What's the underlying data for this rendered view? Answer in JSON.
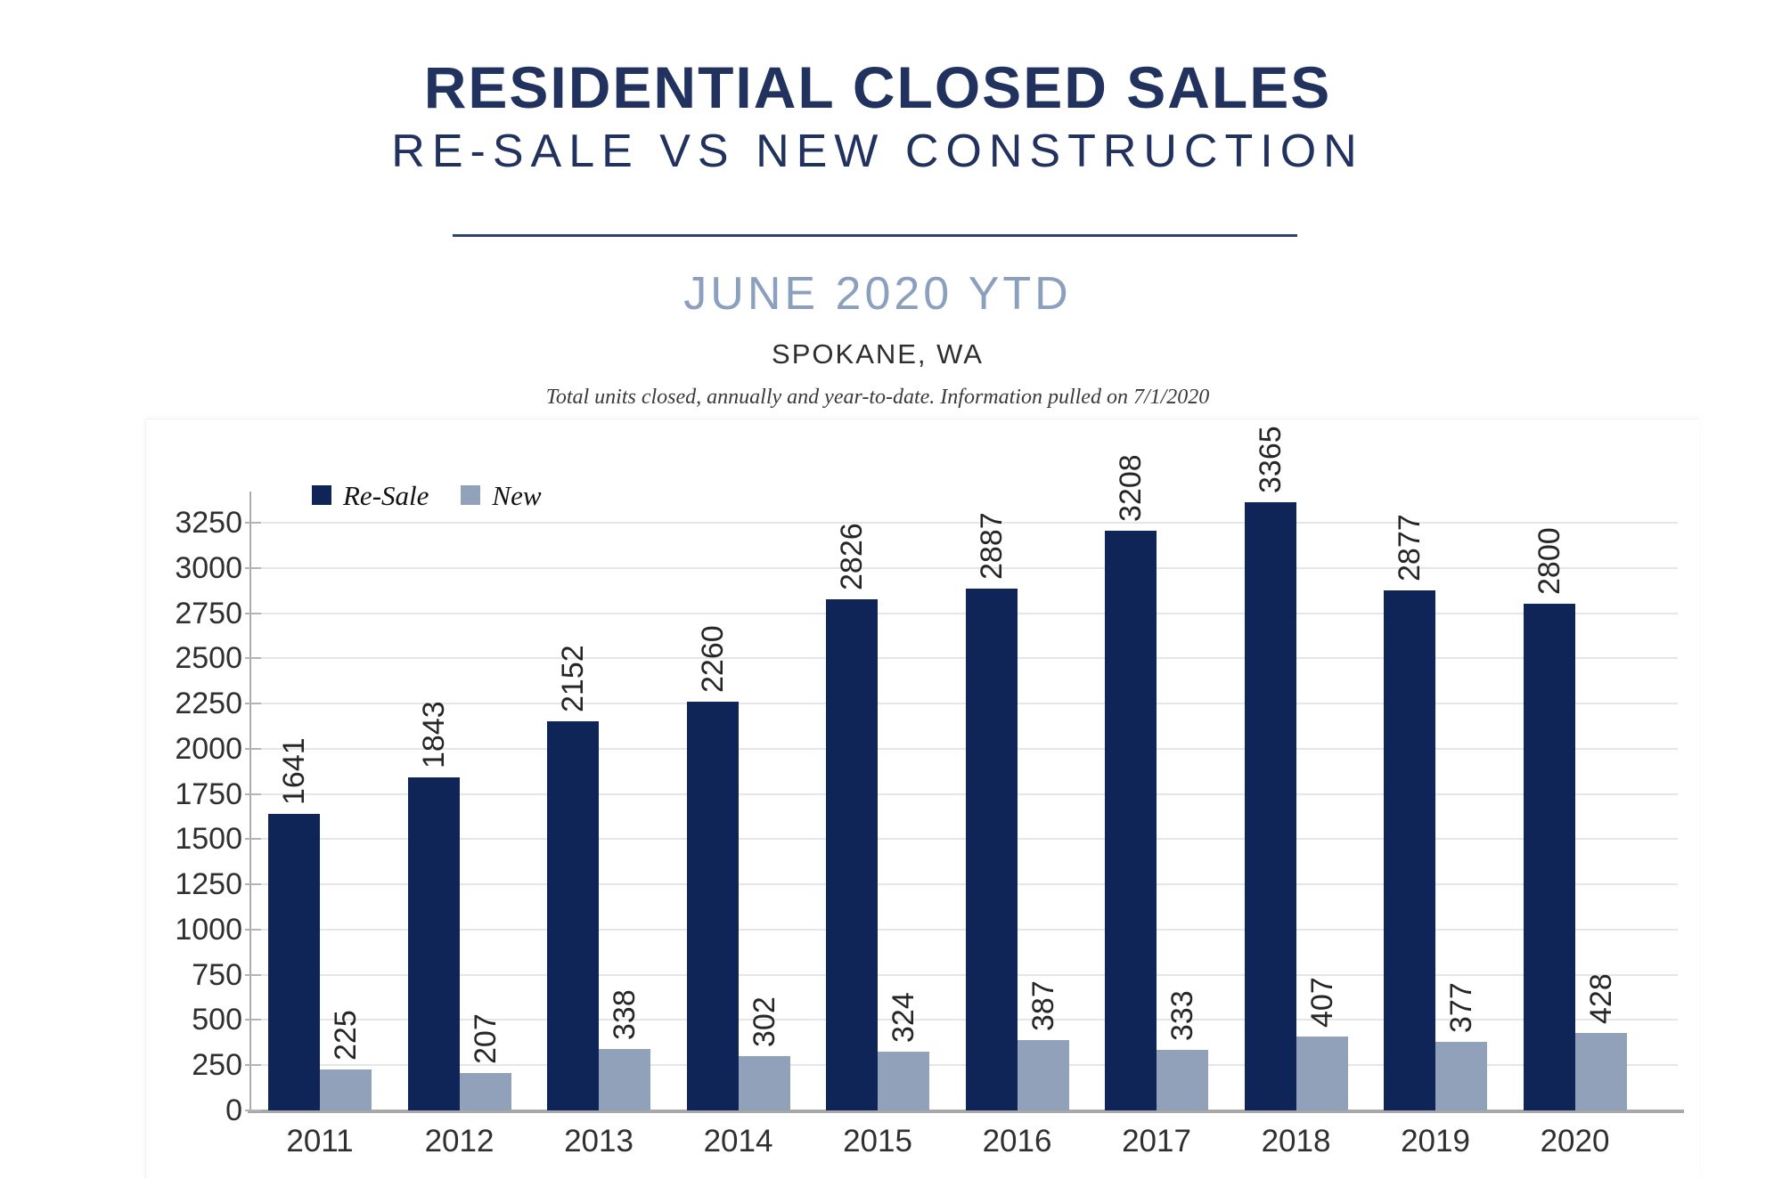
{
  "header": {
    "title": "RESIDENTIAL CLOSED SALES",
    "subtitle": "RE-SALE VS NEW CONSTRUCTION",
    "period": "JUNE 2020 YTD",
    "location": "SPOKANE, WA",
    "note": "Total units closed, annually and year-to-date.  Information pulled on 7/1/2020"
  },
  "chart_data": {
    "type": "bar",
    "title": "RESIDENTIAL CLOSED SALES",
    "subtitle": "RE-SALE VS NEW CONSTRUCTION",
    "categories": [
      "2011",
      "2012",
      "2013",
      "2014",
      "2015",
      "2016",
      "2017",
      "2018",
      "2019",
      "2020"
    ],
    "series": [
      {
        "name": "Re-Sale",
        "color": "#0F2457",
        "values": [
          1641,
          1843,
          2152,
          2260,
          2826,
          2887,
          3208,
          3365,
          2877,
          2800
        ]
      },
      {
        "name": "New",
        "color": "#92A1BA",
        "values": [
          225,
          207,
          338,
          302,
          324,
          387,
          333,
          407,
          377,
          428
        ]
      }
    ],
    "xlabel": "",
    "ylabel": "",
    "ylim": [
      0,
      3250
    ],
    "yticks": [
      0,
      250,
      500,
      750,
      1000,
      1250,
      1500,
      1750,
      2000,
      2250,
      2500,
      2750,
      3000,
      3250
    ],
    "grid": true,
    "legend_position": "top-left",
    "data_labels": "rotated-90-above-bars"
  },
  "colors": {
    "title_navy": "#21325F",
    "divider_navy": "#2F3F6E",
    "period_blue": "#8B9FBE",
    "resale_bar": "#0F2457",
    "new_bar": "#92A1BA",
    "gridline": "#E6E6E6",
    "baseline_gray": "#A8A8A8"
  }
}
